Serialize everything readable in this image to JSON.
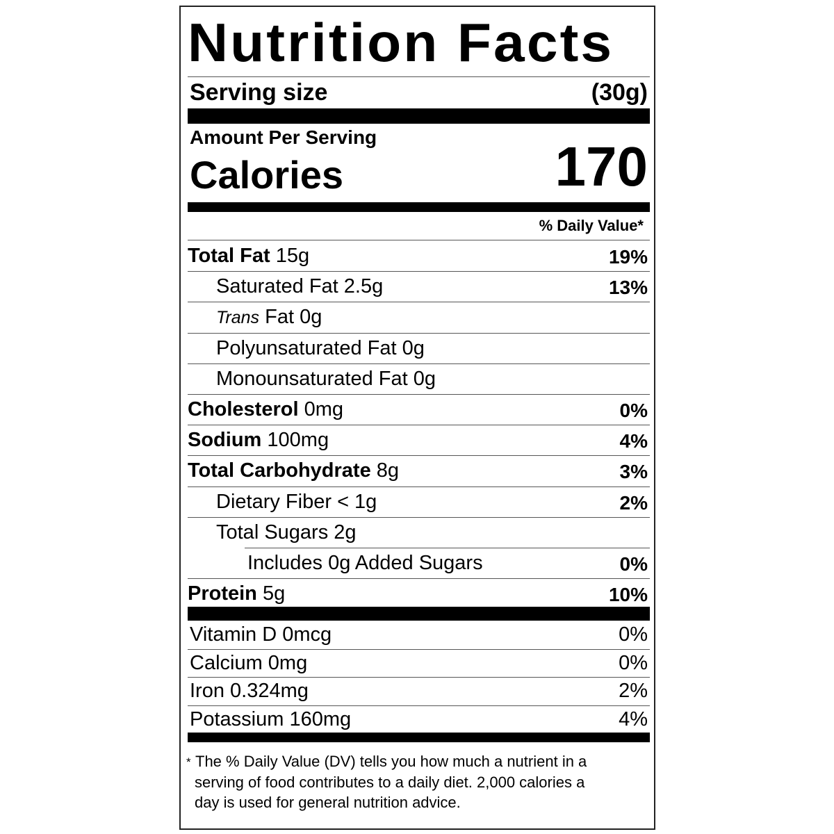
{
  "title": "Nutrition Facts",
  "serving": {
    "label": "Serving size",
    "value": "(30g)"
  },
  "amount_label": "Amount Per Serving",
  "calories": {
    "label": "Calories",
    "value": "170"
  },
  "daily_value_header": "% Daily Value*",
  "nutrients": [
    {
      "name": "Total Fat",
      "amount": "15g",
      "dv": "19%",
      "level": 0
    },
    {
      "name": "Saturated Fat",
      "amount": "2.5g",
      "dv": "13%",
      "level": 1
    },
    {
      "name": "Trans",
      "amount": "Fat 0g",
      "level": 1,
      "name_style": "italic"
    },
    {
      "name": "Polyunsaturated Fat",
      "amount": "0g",
      "level": 1
    },
    {
      "name": "Monounsaturated Fat",
      "amount": "0g",
      "level": 1
    },
    {
      "name": "Cholesterol",
      "amount": "0mg",
      "dv": "0%",
      "level": 0
    },
    {
      "name": "Sodium",
      "amount": "100mg",
      "dv": "4%",
      "level": 0
    },
    {
      "name": "Total Carbohydrate",
      "amount": "8g",
      "dv": "3%",
      "level": 0
    },
    {
      "name": "Dietary Fiber",
      "amount": "< 1g",
      "dv": "2%",
      "level": 1
    },
    {
      "name": "Total Sugars",
      "amount": "2g",
      "level": 1
    },
    {
      "name": "Includes",
      "amount": "0g Added Sugars",
      "dv": "0%",
      "level": 2
    },
    {
      "name": "Protein",
      "amount": "5g",
      "dv": "10%",
      "level": 0
    }
  ],
  "vitamins": [
    {
      "text": "Vitamin D 0mcg",
      "dv": "0%"
    },
    {
      "text": "Calcium 0mg",
      "dv": "0%"
    },
    {
      "text": "Iron 0.324mg",
      "dv": "2%"
    },
    {
      "text": "Potassium 160mg",
      "dv": "4%"
    }
  ],
  "footnote": {
    "mark": "*",
    "lines": [
      "The % Daily Value (DV) tells you how much a nutrient in a",
      "serving of food contributes to a daily diet. 2,000 calories a",
      "day is used for general nutrition advice."
    ]
  }
}
